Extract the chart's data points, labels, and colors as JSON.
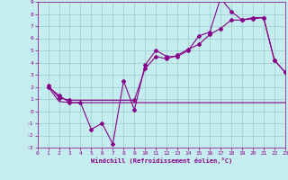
{
  "bg_color": "#c5ecee",
  "grid_color": "#99cccc",
  "line_color": "#880088",
  "xlim": [
    0,
    23
  ],
  "ylim": [
    -3,
    9
  ],
  "xticks": [
    0,
    1,
    2,
    3,
    4,
    5,
    6,
    7,
    8,
    9,
    10,
    11,
    12,
    13,
    14,
    15,
    16,
    17,
    18,
    19,
    20,
    21,
    22,
    23
  ],
  "yticks": [
    -3,
    -2,
    -1,
    0,
    1,
    2,
    3,
    4,
    5,
    6,
    7,
    8,
    9
  ],
  "xlabel": "Windchill (Refroidissement éolien,°C)",
  "line1_x": [
    1,
    2,
    3,
    4,
    5,
    6,
    7,
    8,
    9,
    10,
    11,
    12,
    13,
    14,
    15,
    16,
    17,
    18,
    19,
    20,
    21,
    22,
    23
  ],
  "line1_y": [
    2.0,
    1.3,
    0.7,
    0.7,
    -1.5,
    -1.0,
    -2.7,
    2.5,
    0.1,
    3.8,
    5.0,
    4.5,
    4.5,
    5.0,
    6.2,
    6.5,
    9.3,
    8.2,
    7.5,
    7.6,
    7.7,
    4.2,
    3.2
  ],
  "line2_x": [
    1,
    2,
    3,
    9,
    15,
    19,
    22,
    23
  ],
  "line2_y": [
    2.0,
    0.8,
    0.7,
    0.7,
    0.7,
    0.7,
    0.7,
    0.7
  ],
  "line3_x": [
    1,
    2,
    3,
    9,
    10,
    11,
    12,
    13,
    14,
    15,
    16,
    17,
    18,
    19,
    20,
    21,
    22,
    23
  ],
  "line3_y": [
    2.1,
    1.1,
    0.9,
    0.9,
    3.5,
    4.5,
    4.3,
    4.6,
    5.1,
    5.5,
    6.3,
    6.8,
    7.5,
    7.5,
    7.7,
    7.7,
    4.2,
    3.2
  ]
}
